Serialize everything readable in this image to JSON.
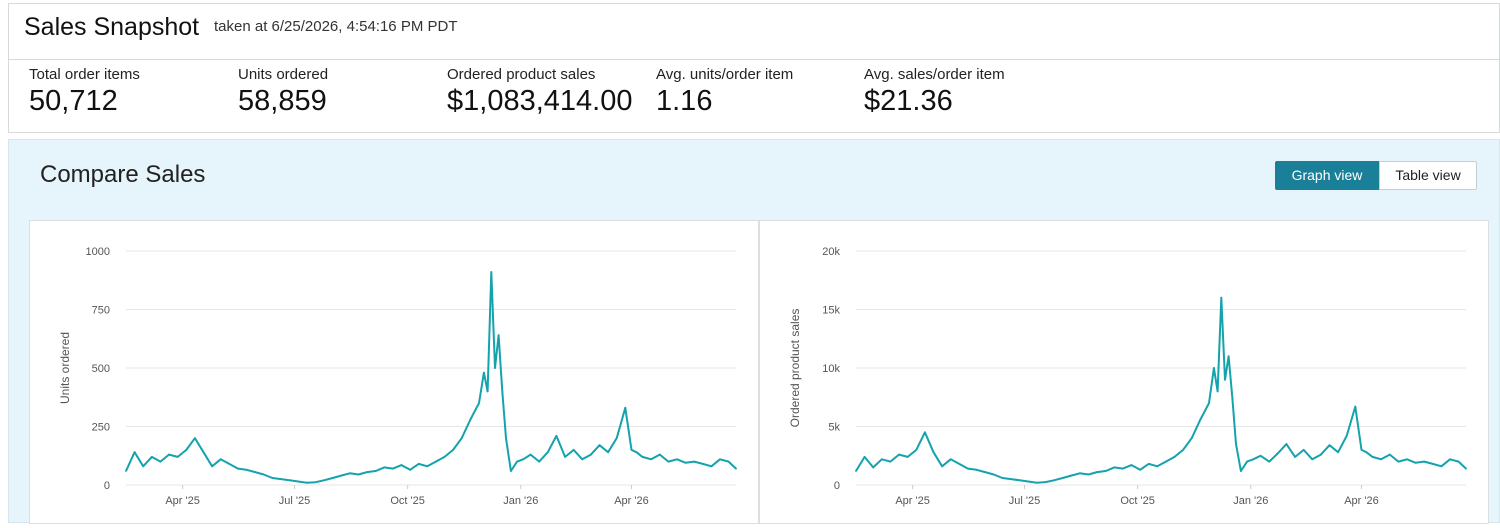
{
  "snapshot": {
    "title": "Sales Snapshot",
    "taken_at": "taken at 6/25/2026, 4:54:16 PM PDT"
  },
  "metrics": [
    {
      "label": "Total order items",
      "value": "50,712"
    },
    {
      "label": "Units ordered",
      "value": "58,859"
    },
    {
      "label": "Ordered product sales",
      "value": "$1,083,414.00"
    },
    {
      "label": "Avg. units/order item",
      "value": "1.16"
    },
    {
      "label": "Avg. sales/order item",
      "value": "$21.36"
    }
  ],
  "compare": {
    "title": "Compare Sales",
    "graph_view_label": "Graph view",
    "table_view_label": "Table view",
    "active_view": "Graph view"
  },
  "colors": {
    "accent": "#1a7f99",
    "line": "#14a3ad",
    "panel_bg": "#e6f4fc"
  },
  "chart_data": [
    {
      "type": "line",
      "title": "",
      "ylabel": "Units ordered",
      "xlabel": "",
      "ylim": [
        0,
        1000
      ],
      "yticks": [
        0,
        250,
        500,
        750,
        1000
      ],
      "ytick_labels": [
        "0",
        "250",
        "500",
        "750",
        "1000"
      ],
      "xticks": [
        "Apr '25",
        "Jul '25",
        "Oct '25",
        "Jan '26",
        "Apr '26"
      ],
      "xtick_dates": [
        "2025-04-01",
        "2025-07-01",
        "2025-10-01",
        "2026-01-01",
        "2026-04-01"
      ],
      "xlim": [
        "2025-02-14",
        "2026-06-25"
      ],
      "grid": true,
      "series": [
        {
          "x": [
            "2025-02-14",
            "2025-02-21",
            "2025-02-28",
            "2025-03-07",
            "2025-03-14",
            "2025-03-21",
            "2025-03-28",
            "2025-04-04",
            "2025-04-11",
            "2025-04-18",
            "2025-04-25",
            "2025-05-02",
            "2025-05-09",
            "2025-05-16",
            "2025-05-23",
            "2025-05-30",
            "2025-06-06",
            "2025-06-13",
            "2025-06-20",
            "2025-06-27",
            "2025-07-04",
            "2025-07-11",
            "2025-07-18",
            "2025-07-25",
            "2025-08-01",
            "2025-08-08",
            "2025-08-15",
            "2025-08-22",
            "2025-08-29",
            "2025-09-05",
            "2025-09-12",
            "2025-09-19",
            "2025-09-26",
            "2025-10-03",
            "2025-10-10",
            "2025-10-17",
            "2025-10-24",
            "2025-10-31",
            "2025-11-07",
            "2025-11-14",
            "2025-11-21",
            "2025-11-28",
            "2025-12-02",
            "2025-12-05",
            "2025-12-08",
            "2025-12-11",
            "2025-12-14",
            "2025-12-17",
            "2025-12-20",
            "2025-12-24",
            "2025-12-29",
            "2026-01-03",
            "2026-01-09",
            "2026-01-16",
            "2026-01-23",
            "2026-01-30",
            "2026-02-06",
            "2026-02-13",
            "2026-02-20",
            "2026-02-27",
            "2026-03-06",
            "2026-03-13",
            "2026-03-20",
            "2026-03-27",
            "2026-04-01",
            "2026-04-05",
            "2026-04-10",
            "2026-04-17",
            "2026-04-24",
            "2026-05-01",
            "2026-05-08",
            "2026-05-15",
            "2026-05-22",
            "2026-05-29",
            "2026-06-05",
            "2026-06-12",
            "2026-06-19",
            "2026-06-25"
          ],
          "y": [
            60,
            140,
            80,
            120,
            100,
            130,
            120,
            150,
            200,
            140,
            80,
            110,
            90,
            70,
            65,
            55,
            45,
            30,
            25,
            20,
            15,
            10,
            12,
            20,
            30,
            40,
            50,
            45,
            55,
            60,
            75,
            70,
            85,
            65,
            90,
            80,
            100,
            120,
            150,
            200,
            280,
            350,
            480,
            400,
            910,
            500,
            640,
            400,
            200,
            60,
            100,
            110,
            130,
            100,
            140,
            210,
            120,
            150,
            110,
            130,
            170,
            140,
            200,
            330,
            150,
            140,
            120,
            110,
            130,
            100,
            110,
            95,
            100,
            90,
            80,
            110,
            100,
            70
          ]
        }
      ]
    },
    {
      "type": "line",
      "title": "",
      "ylabel": "Ordered product sales",
      "xlabel": "",
      "ylim": [
        0,
        20000
      ],
      "yticks": [
        0,
        5000,
        10000,
        15000,
        20000
      ],
      "ytick_labels": [
        "0",
        "5k",
        "10k",
        "15k",
        "20k"
      ],
      "xticks": [
        "Apr '25",
        "Jul '25",
        "Oct '25",
        "Jan '26",
        "Apr '26"
      ],
      "xtick_dates": [
        "2025-04-01",
        "2025-07-01",
        "2025-10-01",
        "2026-01-01",
        "2026-04-01"
      ],
      "xlim": [
        "2025-02-14",
        "2026-06-25"
      ],
      "grid": true,
      "series": [
        {
          "x": [
            "2025-02-14",
            "2025-02-21",
            "2025-02-28",
            "2025-03-07",
            "2025-03-14",
            "2025-03-21",
            "2025-03-28",
            "2025-04-04",
            "2025-04-11",
            "2025-04-18",
            "2025-04-25",
            "2025-05-02",
            "2025-05-09",
            "2025-05-16",
            "2025-05-23",
            "2025-05-30",
            "2025-06-06",
            "2025-06-13",
            "2025-06-20",
            "2025-06-27",
            "2025-07-04",
            "2025-07-11",
            "2025-07-18",
            "2025-07-25",
            "2025-08-01",
            "2025-08-08",
            "2025-08-15",
            "2025-08-22",
            "2025-08-29",
            "2025-09-05",
            "2025-09-12",
            "2025-09-19",
            "2025-09-26",
            "2025-10-03",
            "2025-10-10",
            "2025-10-17",
            "2025-10-24",
            "2025-10-31",
            "2025-11-07",
            "2025-11-14",
            "2025-11-21",
            "2025-11-28",
            "2025-12-02",
            "2025-12-05",
            "2025-12-08",
            "2025-12-11",
            "2025-12-14",
            "2025-12-17",
            "2025-12-20",
            "2025-12-24",
            "2025-12-29",
            "2026-01-03",
            "2026-01-09",
            "2026-01-16",
            "2026-01-23",
            "2026-01-30",
            "2026-02-06",
            "2026-02-13",
            "2026-02-20",
            "2026-02-27",
            "2026-03-06",
            "2026-03-13",
            "2026-03-20",
            "2026-03-27",
            "2026-04-01",
            "2026-04-05",
            "2026-04-10",
            "2026-04-17",
            "2026-04-24",
            "2026-05-01",
            "2026-05-08",
            "2026-05-15",
            "2026-05-22",
            "2026-05-29",
            "2026-06-05",
            "2026-06-12",
            "2026-06-19",
            "2026-06-25"
          ],
          "y": [
            1200,
            2400,
            1500,
            2200,
            2000,
            2600,
            2400,
            3000,
            4500,
            2800,
            1600,
            2200,
            1800,
            1400,
            1300,
            1100,
            900,
            600,
            500,
            400,
            300,
            200,
            250,
            400,
            600,
            800,
            1000,
            900,
            1100,
            1200,
            1500,
            1400,
            1700,
            1300,
            1800,
            1600,
            2000,
            2400,
            3000,
            4000,
            5600,
            7000,
            10000,
            8000,
            16000,
            9000,
            11000,
            7500,
            3500,
            1200,
            2000,
            2200,
            2500,
            2000,
            2700,
            3500,
            2400,
            3000,
            2200,
            2600,
            3400,
            2800,
            4200,
            6700,
            3000,
            2800,
            2400,
            2200,
            2600,
            2000,
            2200,
            1900,
            2000,
            1800,
            1600,
            2200,
            2000,
            1400
          ]
        }
      ]
    }
  ]
}
